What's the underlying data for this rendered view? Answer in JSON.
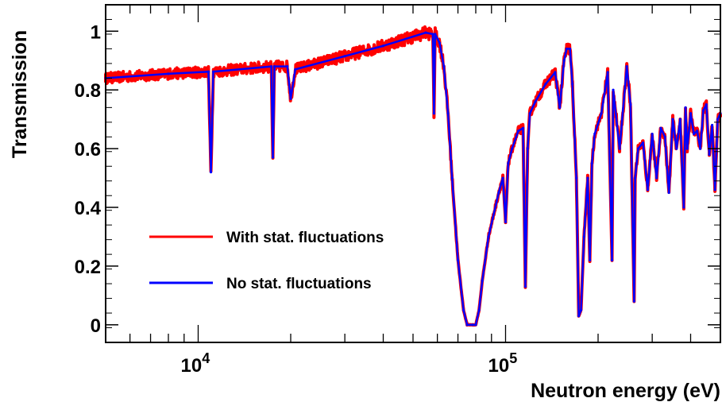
{
  "chart_data": {
    "type": "line",
    "title": "",
    "xlabel": "Neutron energy (eV)",
    "ylabel": "Transmission",
    "xscale": "log",
    "xlim": [
      5000,
      500000
    ],
    "ylim": [
      -0.06,
      1.09
    ],
    "grid": false,
    "legend_position": "left",
    "x_ticks": [
      {
        "value": 10000,
        "base": "10",
        "exp": "4"
      },
      {
        "value": 100000,
        "base": "10",
        "exp": "5"
      }
    ],
    "y_ticks": [
      {
        "value": 0,
        "label": "0"
      },
      {
        "value": 0.2,
        "label": "0.2"
      },
      {
        "value": 0.4,
        "label": "0.4"
      },
      {
        "value": 0.6,
        "label": "0.6"
      },
      {
        "value": 0.8,
        "label": "0.8"
      },
      {
        "value": 1,
        "label": "1"
      }
    ],
    "series": [
      {
        "name": "With stat. fluctuations",
        "color": "#ff0000",
        "noise": 0.022,
        "x": [
          5000,
          8000,
          10800,
          11000,
          11200,
          17300,
          17500,
          17700,
          19500,
          20000,
          20700,
          30000,
          40000,
          55000,
          58000,
          58500,
          59000,
          61000,
          63000,
          65000,
          67000,
          70000,
          73000,
          75000,
          78000,
          80000,
          82000,
          84000,
          88000,
          95000,
          98000,
          100000,
          102000,
          105000,
          110000,
          114000,
          116000,
          118000,
          120000,
          125000,
          135000,
          145000,
          150000,
          155000,
          158000,
          162000,
          165000,
          170000,
          173000,
          176000,
          180000,
          185000,
          188000,
          191000,
          195000,
          205000,
          215000,
          222000,
          224000,
          235000,
          248000,
          255000,
          262000,
          264000,
          270000,
          280000,
          290000,
          300000,
          310000,
          320000,
          330000,
          340000,
          350000,
          360000,
          370000,
          380000,
          385000,
          390000,
          400000,
          410000,
          420000,
          430000,
          440000,
          450000,
          460000,
          470000,
          480000,
          490000,
          500000
        ],
        "y": [
          0.84,
          0.855,
          0.862,
          0.52,
          0.862,
          0.88,
          0.57,
          0.88,
          0.88,
          0.77,
          0.87,
          0.915,
          0.95,
          0.995,
          0.99,
          0.72,
          0.99,
          0.96,
          0.88,
          0.72,
          0.5,
          0.22,
          0.05,
          0.0,
          0.0,
          0.0,
          0.05,
          0.15,
          0.3,
          0.45,
          0.5,
          0.35,
          0.55,
          0.6,
          0.66,
          0.67,
          0.13,
          0.6,
          0.72,
          0.76,
          0.82,
          0.86,
          0.74,
          0.9,
          0.94,
          0.94,
          0.82,
          0.5,
          0.03,
          0.05,
          0.3,
          0.5,
          0.22,
          0.55,
          0.65,
          0.72,
          0.86,
          0.22,
          0.8,
          0.6,
          0.88,
          0.75,
          0.08,
          0.5,
          0.6,
          0.62,
          0.46,
          0.65,
          0.5,
          0.67,
          0.64,
          0.45,
          0.7,
          0.6,
          0.7,
          0.4,
          0.74,
          0.6,
          0.72,
          0.65,
          0.66,
          0.6,
          0.73,
          0.75,
          0.58,
          0.68,
          0.46,
          0.7,
          0.72
        ]
      },
      {
        "name": "No stat. fluctuations",
        "color": "#0000ff",
        "noise": 0,
        "x": [
          5000,
          8000,
          10800,
          11000,
          11200,
          17300,
          17500,
          17700,
          19500,
          20000,
          20700,
          30000,
          40000,
          55000,
          58000,
          58500,
          59000,
          61000,
          63000,
          65000,
          67000,
          70000,
          73000,
          75000,
          78000,
          80000,
          82000,
          84000,
          88000,
          95000,
          98000,
          100000,
          102000,
          105000,
          110000,
          114000,
          116000,
          118000,
          120000,
          125000,
          135000,
          145000,
          150000,
          155000,
          158000,
          162000,
          165000,
          170000,
          173000,
          176000,
          180000,
          185000,
          188000,
          191000,
          195000,
          205000,
          215000,
          222000,
          224000,
          235000,
          248000,
          255000,
          262000,
          264000,
          270000,
          280000,
          290000,
          300000,
          310000,
          320000,
          330000,
          340000,
          350000,
          360000,
          370000,
          380000,
          385000,
          390000,
          400000,
          410000,
          420000,
          430000,
          440000,
          450000,
          460000,
          470000,
          480000,
          490000,
          500000
        ],
        "y": [
          0.84,
          0.855,
          0.862,
          0.52,
          0.862,
          0.88,
          0.57,
          0.88,
          0.88,
          0.77,
          0.87,
          0.915,
          0.95,
          0.995,
          0.99,
          0.72,
          0.99,
          0.96,
          0.88,
          0.72,
          0.5,
          0.22,
          0.05,
          0.0,
          0.0,
          0.0,
          0.05,
          0.15,
          0.3,
          0.45,
          0.5,
          0.35,
          0.55,
          0.6,
          0.66,
          0.67,
          0.13,
          0.6,
          0.72,
          0.76,
          0.82,
          0.86,
          0.74,
          0.9,
          0.94,
          0.94,
          0.82,
          0.5,
          0.03,
          0.05,
          0.3,
          0.5,
          0.22,
          0.55,
          0.65,
          0.72,
          0.86,
          0.22,
          0.8,
          0.6,
          0.88,
          0.75,
          0.08,
          0.5,
          0.6,
          0.62,
          0.46,
          0.65,
          0.5,
          0.67,
          0.64,
          0.45,
          0.7,
          0.6,
          0.7,
          0.4,
          0.74,
          0.6,
          0.72,
          0.65,
          0.66,
          0.6,
          0.73,
          0.75,
          0.58,
          0.68,
          0.46,
          0.7,
          0.72
        ]
      }
    ]
  }
}
